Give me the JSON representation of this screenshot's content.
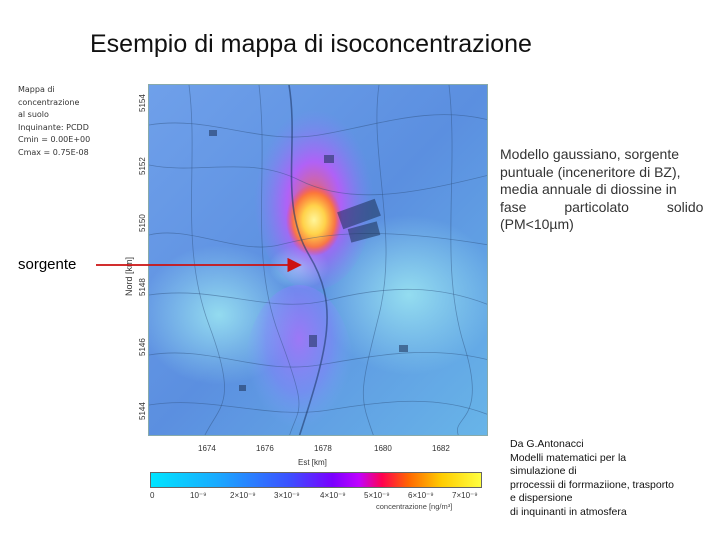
{
  "slide": {
    "title": "Esempio di mappa di isoconcentrazione",
    "source_label": "sorgente",
    "description_lines": [
      "Modello gaussiano, sorgente",
      "puntuale (inceneritore di BZ),",
      "media annuale di diossine in",
      "fase particolato solido",
      "(PM<10µm)"
    ],
    "credit_lines": [
      "Da G.Antonacci",
      "Modelli matematici per la",
      "simulazione di",
      "prrocessii di forrmaziione, trasporto",
      "e dispersione",
      "di inquinanti in atmosfera"
    ]
  },
  "map": {
    "legend_lines": [
      "Mappa di",
      "concentrazione",
      "al suolo",
      "Inquinante: PCDD",
      "Cmin  = 0.00E+00",
      "Cmax  = 0.75E-08"
    ],
    "y_axis_label": "Nord [km]",
    "x_axis_label": "Est [km]",
    "y_ticks": [
      "5154",
      "5152",
      "5150",
      "5148",
      "5146",
      "5144"
    ],
    "x_ticks": [
      "1674",
      "1676",
      "1678",
      "1680",
      "1682"
    ],
    "colorbar_ticks": [
      "0",
      "10⁻⁹",
      "2×10⁻⁹",
      "3×10⁻⁹",
      "4×10⁻⁹",
      "5×10⁻⁹",
      "6×10⁻⁹",
      "7×10⁻⁹"
    ],
    "colorbar_label": "concentrazione [ng/m³]",
    "colors": {
      "background_blue": "#5b8fe0",
      "plume_core": "#ffe066",
      "plume_mid": "#ff7a33",
      "plume_outer": "#c04cff",
      "arrow": "#cc1111"
    }
  }
}
